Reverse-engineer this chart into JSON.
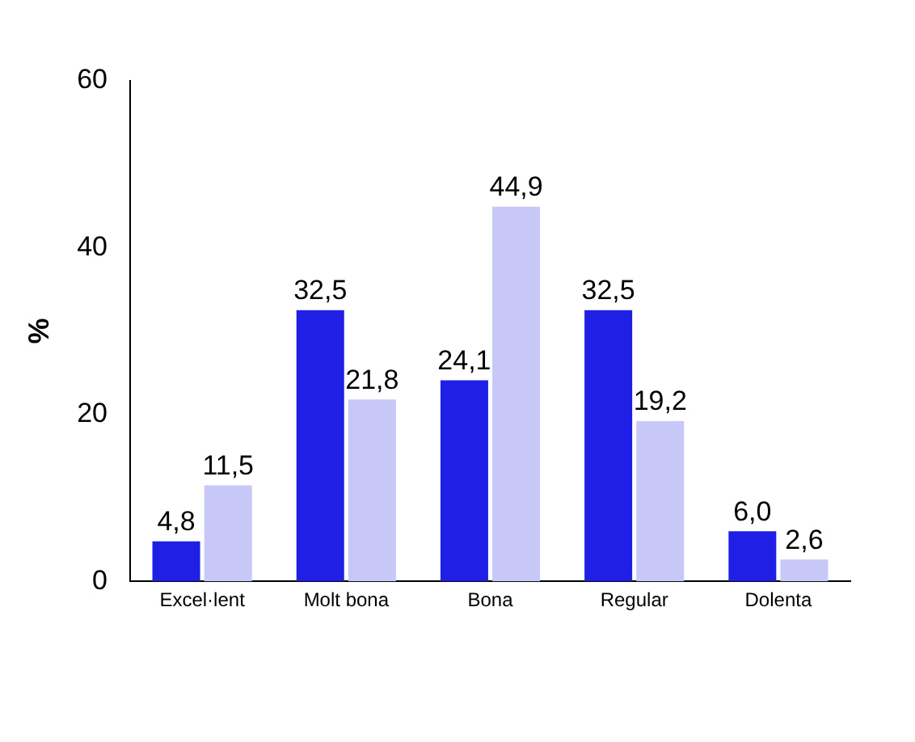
{
  "chart_data": {
    "type": "bar",
    "ylabel": "%",
    "categories": [
      "Excel·lent",
      "Molt bona",
      "Bona",
      "Regular",
      "Dolenta"
    ],
    "series": [
      {
        "color": "#1f1fe6",
        "values": [
          4.8,
          32.5,
          24.1,
          32.5,
          6.0
        ],
        "value_labels": [
          "4,8",
          "32,5",
          "24,1",
          "32,5",
          "6,0"
        ]
      },
      {
        "color": "#c8c8f8",
        "values": [
          11.5,
          21.8,
          44.9,
          19.2,
          2.6
        ],
        "value_labels": [
          "11,5",
          "21,8",
          "44,9",
          "19,2",
          "2,6"
        ]
      }
    ],
    "ylim": [
      0,
      60
    ],
    "yticks": [
      0,
      20,
      40,
      60
    ],
    "grid": false,
    "legend": false
  }
}
